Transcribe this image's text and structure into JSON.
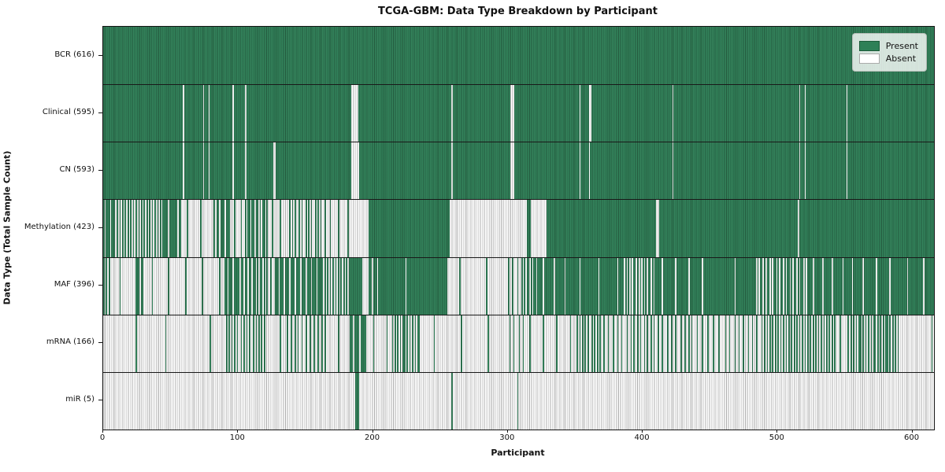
{
  "colors": {
    "present": "#2e8057",
    "present_edge": "#1d5c3a",
    "absent": "#ffffff",
    "absent_edge": "#aaaaaa",
    "axis": "#141414"
  },
  "chart_data": {
    "type": "heatmap",
    "title": "TCGA-GBM: Data Type Breakdown by Participant",
    "xlabel": "Participant",
    "ylabel": "Data Type (Total Sample Count)",
    "x_range": [
      0,
      616
    ],
    "n_participants": 616,
    "x_ticks": [
      0,
      100,
      200,
      300,
      400,
      500,
      600
    ],
    "grid": false,
    "legend": {
      "position": "upper right",
      "entries": [
        {
          "label": "Present",
          "color": "#2e8057"
        },
        {
          "label": "Absent",
          "color": "#ffffff"
        }
      ]
    },
    "segment_encoding": "[start_participant, end_participant, fraction_present]",
    "rows": [
      {
        "label": "BCR (616)",
        "data_type": "BCR",
        "present_count": 616,
        "segments": [
          [
            0,
            616,
            1
          ]
        ]
      },
      {
        "label": "Clinical (595)",
        "data_type": "Clinical",
        "present_count": 595,
        "segments": [
          [
            0,
            59,
            1
          ],
          [
            59,
            60,
            0
          ],
          [
            60,
            74,
            1
          ],
          [
            74,
            75,
            0
          ],
          [
            75,
            78,
            1
          ],
          [
            78,
            79,
            0
          ],
          [
            79,
            96,
            1
          ],
          [
            96,
            97,
            0
          ],
          [
            97,
            105,
            1
          ],
          [
            105,
            106,
            0
          ],
          [
            106,
            184,
            1
          ],
          [
            184,
            189,
            0
          ],
          [
            189,
            258,
            1
          ],
          [
            258,
            259,
            0
          ],
          [
            259,
            302,
            1
          ],
          [
            302,
            305,
            0
          ],
          [
            305,
            353,
            1
          ],
          [
            353,
            354,
            0
          ],
          [
            354,
            360,
            1
          ],
          [
            360,
            362,
            0
          ],
          [
            362,
            422,
            1
          ],
          [
            422,
            423,
            0
          ],
          [
            423,
            516,
            1
          ],
          [
            516,
            517,
            0
          ],
          [
            517,
            520,
            1
          ],
          [
            520,
            521,
            0
          ],
          [
            521,
            551,
            1
          ],
          [
            551,
            552,
            0
          ],
          [
            552,
            616,
            1
          ]
        ]
      },
      {
        "label": "CN (593)",
        "data_type": "CN",
        "present_count": 593,
        "segments": [
          [
            0,
            59,
            1
          ],
          [
            59,
            60,
            0
          ],
          [
            60,
            74,
            1
          ],
          [
            74,
            75,
            0
          ],
          [
            75,
            78,
            1
          ],
          [
            78,
            79,
            0
          ],
          [
            79,
            96,
            1
          ],
          [
            96,
            97,
            0
          ],
          [
            97,
            105,
            1
          ],
          [
            105,
            106,
            0
          ],
          [
            106,
            126,
            1
          ],
          [
            126,
            128,
            0
          ],
          [
            128,
            184,
            1
          ],
          [
            184,
            190,
            0
          ],
          [
            190,
            258,
            1
          ],
          [
            258,
            259,
            0
          ],
          [
            259,
            302,
            1
          ],
          [
            302,
            305,
            0
          ],
          [
            305,
            353,
            1
          ],
          [
            353,
            354,
            0
          ],
          [
            354,
            360,
            1
          ],
          [
            360,
            361,
            0
          ],
          [
            361,
            422,
            1
          ],
          [
            422,
            423,
            0
          ],
          [
            423,
            516,
            1
          ],
          [
            516,
            517,
            0
          ],
          [
            517,
            520,
            1
          ],
          [
            520,
            521,
            0
          ],
          [
            521,
            551,
            1
          ],
          [
            551,
            552,
            0
          ],
          [
            552,
            616,
            1
          ]
        ]
      },
      {
        "label": "Methylation (423)",
        "data_type": "Methylation",
        "present_count": 423,
        "segments": [
          [
            0,
            8,
            0.7
          ],
          [
            8,
            45,
            0.5
          ],
          [
            45,
            58,
            0.85
          ],
          [
            58,
            84,
            0.1
          ],
          [
            84,
            95,
            0.75
          ],
          [
            95,
            105,
            0.2
          ],
          [
            105,
            122,
            0.65
          ],
          [
            122,
            137,
            0.15
          ],
          [
            137,
            165,
            0.42
          ],
          [
            165,
            185,
            0.15
          ],
          [
            185,
            197,
            0
          ],
          [
            197,
            257,
            1
          ],
          [
            257,
            314,
            0
          ],
          [
            314,
            317,
            1
          ],
          [
            317,
            329,
            0
          ],
          [
            329,
            410,
            1
          ],
          [
            410,
            412,
            0
          ],
          [
            412,
            515,
            1
          ],
          [
            515,
            516,
            0
          ],
          [
            516,
            616,
            1
          ]
        ]
      },
      {
        "label": "MAF (396)",
        "data_type": "MAF",
        "present_count": 396,
        "segments": [
          [
            0,
            6,
            0.5
          ],
          [
            6,
            25,
            0.08
          ],
          [
            25,
            30,
            0.8
          ],
          [
            30,
            90,
            0.08
          ],
          [
            90,
            103,
            0.78
          ],
          [
            103,
            120,
            0.65
          ],
          [
            120,
            128,
            0.35
          ],
          [
            128,
            162,
            0.75
          ],
          [
            162,
            183,
            0.5
          ],
          [
            183,
            192,
            0.95
          ],
          [
            192,
            197,
            0.05
          ],
          [
            197,
            208,
            0.78
          ],
          [
            208,
            255,
            0.97
          ],
          [
            255,
            299,
            0.05
          ],
          [
            299,
            310,
            0.3
          ],
          [
            310,
            322,
            0.6
          ],
          [
            322,
            346,
            0.88
          ],
          [
            346,
            385,
            0.93
          ],
          [
            385,
            409,
            0.55
          ],
          [
            409,
            452,
            0.9
          ],
          [
            452,
            483,
            0.97
          ],
          [
            483,
            523,
            0.6
          ],
          [
            523,
            558,
            0.86
          ],
          [
            558,
            590,
            0.9
          ],
          [
            590,
            616,
            0.92
          ]
        ]
      },
      {
        "label": "mRNA (166)",
        "data_type": "mRNA",
        "present_count": 166,
        "segments": [
          [
            0,
            30,
            0.02
          ],
          [
            30,
            90,
            0.03
          ],
          [
            90,
            122,
            0.45
          ],
          [
            122,
            135,
            0.05
          ],
          [
            135,
            165,
            0.35
          ],
          [
            165,
            183,
            0.05
          ],
          [
            183,
            196,
            0.8
          ],
          [
            196,
            214,
            0.1
          ],
          [
            214,
            236,
            0.55
          ],
          [
            236,
            300,
            0.05
          ],
          [
            300,
            312,
            0.3
          ],
          [
            312,
            350,
            0.1
          ],
          [
            350,
            370,
            0.45
          ],
          [
            370,
            390,
            0.3
          ],
          [
            390,
            410,
            0.4
          ],
          [
            410,
            435,
            0.3
          ],
          [
            435,
            460,
            0.25
          ],
          [
            460,
            490,
            0.3
          ],
          [
            490,
            543,
            0.5
          ],
          [
            543,
            552,
            0.15
          ],
          [
            552,
            590,
            0.55
          ],
          [
            590,
            616,
            0.02
          ]
        ]
      },
      {
        "label": "miR (5)",
        "data_type": "miR",
        "present_count": 5,
        "segments": [
          [
            0,
            187,
            0
          ],
          [
            187,
            190,
            1
          ],
          [
            190,
            258,
            0
          ],
          [
            258,
            259,
            1
          ],
          [
            259,
            307,
            0
          ],
          [
            307,
            308,
            1
          ],
          [
            308,
            616,
            0
          ]
        ]
      }
    ]
  }
}
